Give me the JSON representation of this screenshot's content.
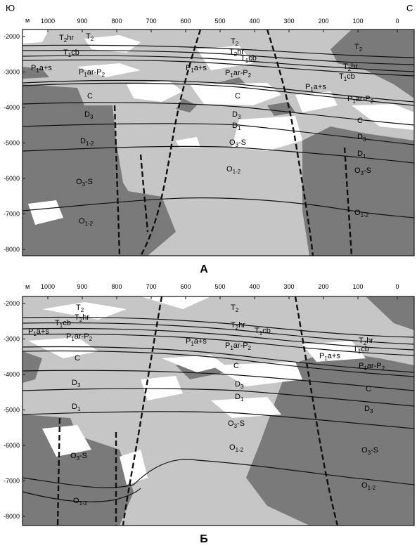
{
  "header": {
    "left_dir": "Ю",
    "right_dir": "С"
  },
  "unit": "м",
  "colors": {
    "dark": "#7a7a7a",
    "mid": "#c6c6c6",
    "light": "#ffffff",
    "line": "#111111"
  },
  "x_ticks": [
    "1000",
    "900",
    "800",
    "700",
    "600",
    "500",
    "400",
    "300",
    "200",
    "100",
    "0"
  ],
  "y_ticks": [
    "-2000",
    "-3000",
    "-4000",
    "-5000",
    "-6000",
    "-7000",
    "-8000"
  ],
  "panels": [
    {
      "label": "А",
      "units": [
        {
          "base": "T",
          "sub": "2",
          "sup": "",
          "suffix": "hr",
          "pos": "pA1"
        },
        {
          "base": "T",
          "sub": "2",
          "sup": "",
          "suffix": "",
          "pos": "pA2"
        },
        {
          "base": "T",
          "sub": "1",
          "sup": "",
          "suffix": "cb",
          "pos": "pA3"
        },
        {
          "base": "P",
          "sub": "1",
          "sup": "",
          "suffix": "a+s",
          "pos": "pA4"
        },
        {
          "base": "P",
          "sub": "1",
          "sup": "",
          "suffix": "ar-P",
          "sub2": "2",
          "pos": "pA5"
        },
        {
          "base": "C",
          "sub": "",
          "sup": "",
          "suffix": "",
          "pos": "pA6"
        },
        {
          "base": "D",
          "sub": "3",
          "sup": "",
          "suffix": "",
          "pos": "pA7"
        },
        {
          "base": "D",
          "sub": "1-2",
          "sup": "",
          "suffix": "",
          "pos": "pA8"
        },
        {
          "base": "O",
          "sub": "3",
          "sup": "",
          "suffix": "-S",
          "pos": "pA9"
        },
        {
          "base": "O",
          "sub": "1-2",
          "sup": "",
          "suffix": "",
          "pos": "pA10"
        },
        {
          "base": "T",
          "sub": "2",
          "sup": "",
          "suffix": "",
          "pos": "pA11"
        },
        {
          "base": "T",
          "sub": "2",
          "sup": "",
          "suffix": "hr",
          "pos": "pA12"
        },
        {
          "base": "T",
          "sub": "1",
          "sup": "",
          "suffix": "cb",
          "pos": "pA13"
        },
        {
          "base": "P",
          "sub": "1",
          "sup": "",
          "suffix": "a+s",
          "pos": "pA14"
        },
        {
          "base": "P",
          "sub": "1",
          "sup": "",
          "suffix": "ar-P",
          "sub2": "2",
          "pos": "pA15"
        },
        {
          "base": "C",
          "sub": "",
          "sup": "",
          "suffix": "",
          "pos": "pA16"
        },
        {
          "base": "D",
          "sub": "3",
          "sup": "",
          "suffix": "",
          "pos": "pA17"
        },
        {
          "base": "D",
          "sub": "1",
          "sup": "",
          "suffix": "",
          "pos": "pA18"
        },
        {
          "base": "O",
          "sub": "3",
          "sup": "",
          "suffix": "-S",
          "pos": "pA19"
        },
        {
          "base": "O",
          "sub": "1-2",
          "sup": "",
          "suffix": "",
          "pos": "pA20"
        },
        {
          "base": "T",
          "sub": "2",
          "sup": "",
          "suffix": "",
          "pos": "pA21"
        },
        {
          "base": "T",
          "sub": "2",
          "sup": "",
          "suffix": "hr",
          "pos": "pA22"
        },
        {
          "base": "T",
          "sub": "1",
          "sup": "",
          "suffix": "cb",
          "pos": "pA23"
        },
        {
          "base": "P",
          "sub": "1",
          "sup": "",
          "suffix": "a+s",
          "pos": "pA24"
        },
        {
          "base": "P",
          "sub": "1",
          "sup": "",
          "suffix": "ar-P",
          "sub2": "2",
          "pos": "pA25"
        },
        {
          "base": "C",
          "sub": "",
          "sup": "",
          "suffix": "",
          "pos": "pA26"
        },
        {
          "base": "D",
          "sub": "3",
          "sup": "",
          "suffix": "",
          "pos": "pA27"
        },
        {
          "base": "D",
          "sub": "1",
          "sup": "",
          "suffix": "",
          "pos": "pA28"
        },
        {
          "base": "O",
          "sub": "3",
          "sup": "",
          "suffix": "-S",
          "pos": "pA29"
        },
        {
          "base": "O",
          "sub": "1-2",
          "sup": "",
          "suffix": "",
          "pos": "pA30"
        }
      ]
    },
    {
      "label": "Б",
      "units": [
        {
          "base": "T",
          "sub": "2",
          "sup": "",
          "suffix": "",
          "pos": "pB1"
        },
        {
          "base": "T",
          "sub": "2",
          "sup": "",
          "suffix": "hr",
          "pos": "pB2"
        },
        {
          "base": "T",
          "sub": "1",
          "sup": "",
          "suffix": "cb",
          "pos": "pB3"
        },
        {
          "base": "P",
          "sub": "1",
          "sup": "",
          "suffix": "a+s",
          "pos": "pB4"
        },
        {
          "base": "P",
          "sub": "1",
          "sup": "",
          "suffix": "ar-P",
          "sub2": "2",
          "pos": "pB5"
        },
        {
          "base": "C",
          "sub": "",
          "sup": "",
          "suffix": "",
          "pos": "pB6"
        },
        {
          "base": "D",
          "sub": "3",
          "sup": "",
          "suffix": "",
          "pos": "pB7"
        },
        {
          "base": "D",
          "sub": "1",
          "sup": "",
          "suffix": "",
          "pos": "pB8"
        },
        {
          "base": "O",
          "sub": "3",
          "sup": "",
          "suffix": "-S",
          "pos": "pB9"
        },
        {
          "base": "O",
          "sub": "1-2",
          "sup": "",
          "suffix": "",
          "pos": "pB10"
        },
        {
          "base": "T",
          "sub": "2",
          "sup": "",
          "suffix": "",
          "pos": "pB11"
        },
        {
          "base": "T",
          "sub": "2",
          "sup": "",
          "suffix": "hr",
          "pos": "pB12"
        },
        {
          "base": "T",
          "sub": "1",
          "sup": "",
          "suffix": "cb",
          "pos": "pB13"
        },
        {
          "base": "P",
          "sub": "1",
          "sup": "",
          "suffix": "a+s",
          "pos": "pB14"
        },
        {
          "base": "P",
          "sub": "1",
          "sup": "",
          "suffix": "ar-P",
          "sub2": "2",
          "pos": "pB15"
        },
        {
          "base": "C",
          "sub": "",
          "sup": "",
          "suffix": "",
          "pos": "pB16"
        },
        {
          "base": "D",
          "sub": "3",
          "sup": "",
          "suffix": "",
          "pos": "pB17"
        },
        {
          "base": "D",
          "sub": "1",
          "sup": "",
          "suffix": "",
          "pos": "pB18"
        },
        {
          "base": "O",
          "sub": "3",
          "sup": "",
          "suffix": "-S",
          "pos": "pB19"
        },
        {
          "base": "O",
          "sub": "1-2",
          "sup": "",
          "suffix": "",
          "pos": "pB20"
        },
        {
          "base": "T",
          "sub": "2",
          "sup": "",
          "suffix": "hr",
          "pos": "pB21"
        },
        {
          "base": "T",
          "sub": "1",
          "sup": "",
          "suffix": "cb",
          "pos": "pB22"
        },
        {
          "base": "P",
          "sub": "1",
          "sup": "",
          "suffix": "a+s",
          "pos": "pB23"
        },
        {
          "base": "P",
          "sub": "1",
          "sup": "",
          "suffix": "ar-P",
          "sub2": "2",
          "pos": "pB24"
        },
        {
          "base": "C",
          "sub": "",
          "sup": "",
          "suffix": "",
          "pos": "pB25"
        },
        {
          "base": "D",
          "sub": "3",
          "sup": "",
          "suffix": "",
          "pos": "pB26"
        },
        {
          "base": "O",
          "sub": "3",
          "sup": "",
          "suffix": "-S",
          "pos": "pB27"
        },
        {
          "base": "O",
          "sub": "1-2",
          "sup": "",
          "suffix": "",
          "pos": "pB28"
        }
      ]
    }
  ]
}
